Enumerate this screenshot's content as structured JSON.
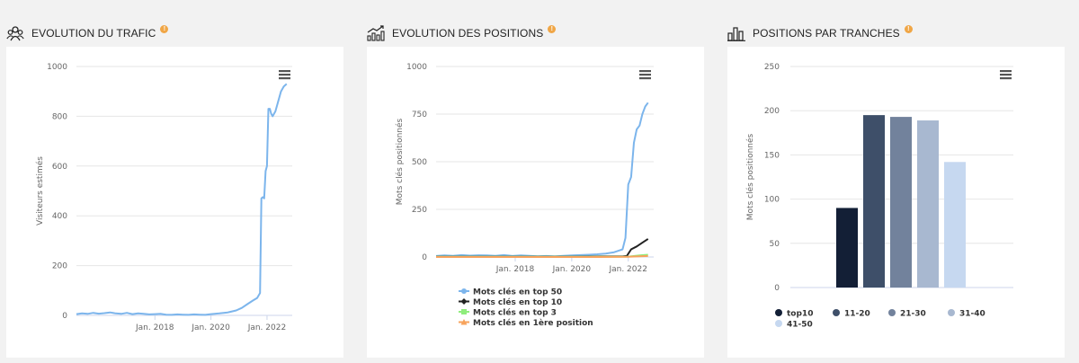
{
  "panels": {
    "traffic": {
      "title": "EVOLUTION DU TRAFIC",
      "badge": "!",
      "icon": "users-icon"
    },
    "positions": {
      "title": "EVOLUTION DES POSITIONS",
      "badge": "!",
      "icon": "chart-growth-icon"
    },
    "ranges": {
      "title": "POSITIONS PAR TRANCHES",
      "badge": "!",
      "icon": "bar-columns-icon"
    }
  },
  "menu_icon": "hamburger-menu-icon",
  "colors": {
    "traffic_line": "#7cb5ec",
    "grid": "#e6e6e6",
    "axis_text": "#666666"
  },
  "chart_data": [
    {
      "type": "line",
      "id": "traffic",
      "ylabel": "Visiteurs estimés",
      "xlabel": "",
      "ylim": [
        0,
        1000
      ],
      "yticks": [
        0,
        200,
        400,
        600,
        800,
        1000
      ],
      "xlim": [
        2015.2,
        2022.9
      ],
      "xticks": [
        {
          "label": "Jan. 2018",
          "value": 2018
        },
        {
          "label": "Jan. 2020",
          "value": 2020
        },
        {
          "label": "Jan. 2022",
          "value": 2022
        }
      ],
      "series": [
        {
          "color": "#7cb5ec",
          "x": [
            2015.2,
            2015.4,
            2015.6,
            2015.8,
            2016.0,
            2016.2,
            2016.4,
            2016.6,
            2016.8,
            2017.0,
            2017.2,
            2017.4,
            2017.6,
            2017.8,
            2018.0,
            2018.2,
            2018.4,
            2018.6,
            2018.8,
            2019.0,
            2019.2,
            2019.4,
            2019.6,
            2019.8,
            2020.0,
            2020.3,
            2020.6,
            2020.9,
            2021.1,
            2021.3,
            2021.5,
            2021.65,
            2021.75,
            2021.8,
            2021.85,
            2021.9,
            2021.95,
            2022.0,
            2022.05,
            2022.1,
            2022.15,
            2022.2,
            2022.3,
            2022.4,
            2022.5,
            2022.6,
            2022.7
          ],
          "y": [
            5,
            8,
            6,
            10,
            7,
            9,
            12,
            8,
            6,
            10,
            5,
            8,
            6,
            4,
            5,
            6,
            3,
            2,
            4,
            3,
            2,
            4,
            3,
            2,
            5,
            8,
            12,
            20,
            30,
            45,
            60,
            70,
            90,
            470,
            475,
            470,
            580,
            600,
            830,
            830,
            810,
            800,
            820,
            860,
            900,
            920,
            930
          ]
        }
      ]
    },
    {
      "type": "line",
      "id": "positions",
      "ylabel": "Mots clés positionnés",
      "xlabel": "",
      "ylim": [
        0,
        1000
      ],
      "yticks": [
        0,
        250,
        500,
        750,
        1000
      ],
      "xlim": [
        2015.2,
        2022.9
      ],
      "xticks": [
        {
          "label": "Jan. 2018",
          "value": 2018
        },
        {
          "label": "Jan. 2020",
          "value": 2020
        },
        {
          "label": "Jan. 2022",
          "value": 2022
        }
      ],
      "legend_position": "bottom-left",
      "series": [
        {
          "name": "Mots clés en top 50",
          "color": "#7cb5ec",
          "marker": "circle",
          "x": [
            2015.2,
            2015.5,
            2015.8,
            2016.1,
            2016.4,
            2016.7,
            2017.0,
            2017.3,
            2017.6,
            2017.9,
            2018.2,
            2018.5,
            2018.8,
            2019.1,
            2019.4,
            2019.7,
            2020.0,
            2020.3,
            2020.6,
            2020.9,
            2021.2,
            2021.5,
            2021.7,
            2021.8,
            2021.9,
            2022.0,
            2022.1,
            2022.2,
            2022.3,
            2022.4,
            2022.5,
            2022.6,
            2022.7
          ],
          "y": [
            5,
            8,
            6,
            10,
            7,
            9,
            8,
            6,
            10,
            5,
            8,
            6,
            4,
            5,
            3,
            6,
            8,
            10,
            12,
            14,
            18,
            25,
            35,
            40,
            100,
            380,
            420,
            600,
            670,
            690,
            750,
            790,
            810
          ]
        },
        {
          "name": "Mots clés en top 10",
          "color": "#222222",
          "marker": "diamond",
          "x": [
            2015.2,
            2016.0,
            2017.0,
            2018.0,
            2019.0,
            2020.0,
            2021.0,
            2021.8,
            2021.95,
            2022.1,
            2022.3,
            2022.5,
            2022.7
          ],
          "y": [
            2,
            2,
            2,
            2,
            2,
            2,
            3,
            3,
            5,
            40,
            55,
            75,
            95
          ]
        },
        {
          "name": "Mots clés en top 3",
          "color": "#90ed7d",
          "marker": "square",
          "x": [
            2015.2,
            2016.0,
            2017.0,
            2018.0,
            2019.0,
            2020.0,
            2021.0,
            2022.0,
            2022.4,
            2022.7
          ],
          "y": [
            1,
            1,
            1,
            1,
            1,
            1,
            1,
            2,
            8,
            12
          ]
        },
        {
          "name": "Mots clés en 1ère position",
          "color": "#f7a35c",
          "marker": "triangle",
          "x": [
            2015.2,
            2016.0,
            2017.0,
            2018.0,
            2019.0,
            2020.0,
            2021.0,
            2022.0,
            2022.7
          ],
          "y": [
            0,
            0,
            0,
            0,
            0,
            0,
            0,
            1,
            5
          ]
        }
      ]
    },
    {
      "type": "bar",
      "id": "ranges",
      "ylabel": "Mots clés positionnés",
      "xlabel": "",
      "ylim": [
        0,
        250
      ],
      "yticks": [
        0,
        50,
        100,
        150,
        200,
        250
      ],
      "legend_position": "bottom",
      "categories": [
        "top10",
        "11-20",
        "21-30",
        "31-40",
        "41-50"
      ],
      "values": [
        90,
        195,
        193,
        189,
        142
      ],
      "colors": [
        "#131f36",
        "#3e4f69",
        "#72829c",
        "#a8b8d0",
        "#c6d8f0"
      ]
    }
  ]
}
